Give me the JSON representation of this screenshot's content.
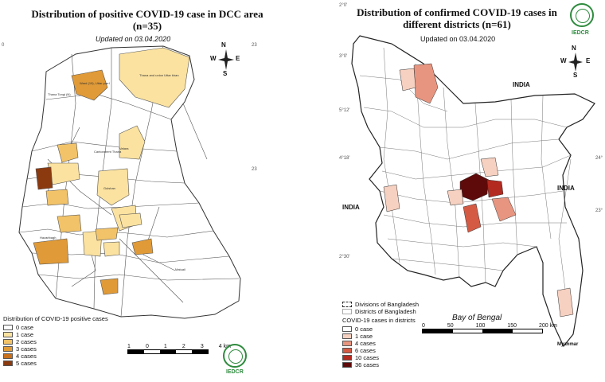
{
  "left_map": {
    "title": "Distribution of positive COVID-19 case  in DCC area",
    "title_n": "(n=35)",
    "updated": "Updated on 03.04.2020",
    "legend_title": "Distribution of COVID-19 positive cases",
    "legend": [
      {
        "label": "0 case",
        "color": "#ffffff"
      },
      {
        "label": "1 case",
        "color": "#fbe2a0"
      },
      {
        "label": "2 cases",
        "color": "#f2c368"
      },
      {
        "label": "3 cases",
        "color": "#e09a37"
      },
      {
        "label": "4 cases",
        "color": "#c8701c"
      },
      {
        "label": "5 cases",
        "color": "#8b3a10"
      }
    ],
    "scale_labels": [
      "1",
      "0",
      "1",
      "2",
      "3",
      "4 km"
    ],
    "compass": {
      "n": "N",
      "e": "E",
      "s": "S",
      "w": "W"
    },
    "org": "IEDCR",
    "edge_ticks": [
      "23",
      "23",
      "0"
    ]
  },
  "right_map": {
    "title_line1": "Distribution of confirmed COVID-19 cases in",
    "title_line2": "different districts (n=61)",
    "updated": "Updated on 03.04.2020",
    "org": "IEDCR",
    "compass": {
      "n": "N",
      "e": "E",
      "s": "S",
      "w": "W"
    },
    "labels": {
      "india_top": "INDIA",
      "india_left": "INDIA",
      "india_right": "INDIA",
      "bay": "Bay of Bengal",
      "myanmar": "Myanmar"
    },
    "legend_boundaries": [
      "Divisions of Bangladesh",
      "Districts of Bangladesh"
    ],
    "legend_title": "COVID-19 cases in districts",
    "legend": [
      {
        "label": "0 case",
        "color": "#ffffff"
      },
      {
        "label": "1 case",
        "color": "#f6d0c0"
      },
      {
        "label": "4 cases",
        "color": "#e79580"
      },
      {
        "label": "6 cases",
        "color": "#d45a44"
      },
      {
        "label": "10 cases",
        "color": "#b32a20"
      },
      {
        "label": "36 cases",
        "color": "#5e0a0a"
      }
    ],
    "scale_labels": [
      "0",
      "50",
      "100",
      "150",
      "200 km"
    ],
    "lat_ticks": [
      "2°0'",
      "3°0'",
      "5°12'",
      "4°18'",
      "2°30'",
      "24°",
      "23°"
    ]
  }
}
